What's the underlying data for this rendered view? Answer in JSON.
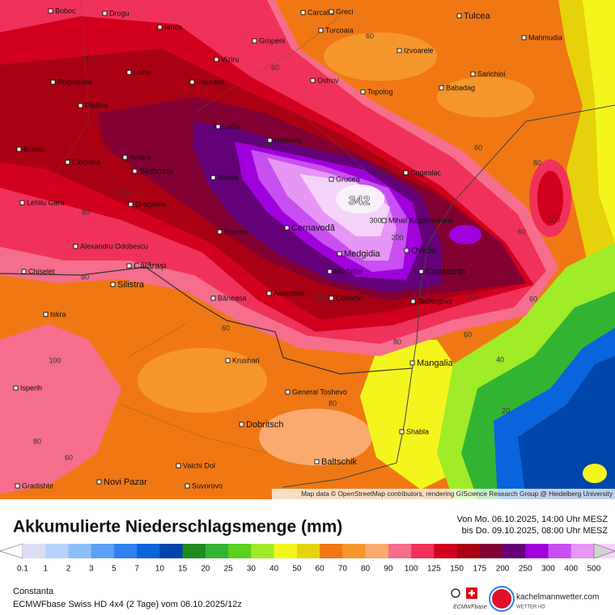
{
  "map": {
    "cities": [
      "Boboc",
      "Drogu",
      "Ianca",
      "Carcaliu",
      "Greci",
      "Tulcea",
      "Turcoaia",
      "Gropeni",
      "Mahmudia",
      "Viziru",
      "Izvoarele",
      "Ulmu",
      "Pogoanele",
      "Insuratei",
      "Ostrov",
      "Sarichioi",
      "Babadag",
      "Topolog",
      "Padina",
      "Luciu",
      "Harsova",
      "Butoiu",
      "Amara",
      "Ciochina",
      "Slobozia",
      "Movila",
      "Grucea",
      "Cogealac",
      "Lehliu Gara",
      "Dragalina",
      "Mihail Kogălniceanu",
      "Cernavodă",
      "Borcea",
      "Alexandru Odobescu",
      "Ovidiu",
      "Medgidia",
      "Călărași",
      "Chiselet",
      "Murfatlar",
      "Constanța",
      "Silistra",
      "Băneasa",
      "Adamclisi",
      "Cobadin",
      "Techirghiol",
      "Iskra",
      "Krushari",
      "Mangalia",
      "Isperih",
      "General Toshevo",
      "Dobritsch",
      "Shabla",
      "Baltschik",
      "Valchi Dol",
      "Novi Pazar",
      "Gradishte",
      "Suvorovo"
    ],
    "contour_labels": [
      "100",
      "60",
      "60",
      "200",
      "100",
      "342",
      "300",
      "200",
      "100",
      "80",
      "80",
      "100",
      "60",
      "80",
      "100",
      "60",
      "60",
      "40",
      "20",
      "80",
      "100",
      "80",
      "60",
      "80",
      "100",
      "60",
      "60"
    ],
    "attribution": "Map data © OpenStreetMap contributors, rendering GIScience Research Group @ Heidelberg University"
  },
  "legend": {
    "title": "Akkumulierte Niederschlagsmenge (mm)",
    "period_from": "Von Mo. 06.10.2025, 14:00 Uhr MESZ",
    "period_to": "bis Do. 09.10.2025, 08:00 Uhr MESZ",
    "labels": [
      "0.1",
      "1",
      "2",
      "3",
      "5",
      "7",
      "10",
      "15",
      "20",
      "25",
      "30",
      "40",
      "50",
      "60",
      "70",
      "80",
      "90",
      "100",
      "125",
      "150",
      "175",
      "200",
      "250",
      "300",
      "400",
      "500"
    ],
    "colors": [
      "#ffffff",
      "#dcdcf5",
      "#b4d2fa",
      "#8cbefa",
      "#5aa0f5",
      "#2d82f0",
      "#0a64dc",
      "#0046aa",
      "#1e8c1e",
      "#32b432",
      "#5ad21e",
      "#a0eb28",
      "#f5f51e",
      "#e6d20a",
      "#f07814",
      "#f5962d",
      "#faaa6e",
      "#f56e8c",
      "#f0325a",
      "#d2001e",
      "#aa0014",
      "#820032",
      "#640078",
      "#a000dc",
      "#c850f0",
      "#e696f5",
      "#f5d2fa",
      "#d2d2d2"
    ]
  },
  "footer": {
    "location": "Constanta",
    "model": "ECMWFbase Swiss HD 4x4 (2 Tage) vom 06.10.2025/12z",
    "brand": "kachelmannwetter.com",
    "brand_sub": "WETTER HD",
    "ecmwf": "ECMWFbase"
  }
}
